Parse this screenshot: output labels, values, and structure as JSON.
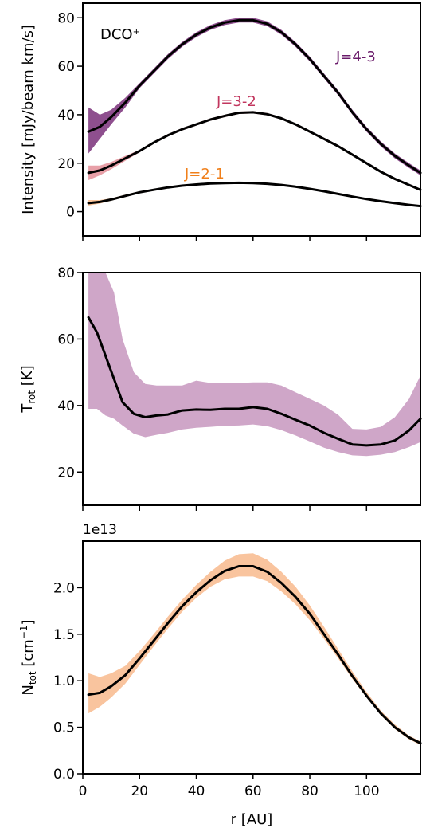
{
  "chart_data": [
    {
      "type": "line",
      "ylabel": "Intensity [mJy/beam km/s]",
      "annotation": "DCO⁺",
      "xlim": [
        0,
        119
      ],
      "ylim": [
        -10,
        86
      ],
      "yticks": [
        0,
        20,
        40,
        60,
        80
      ],
      "xticks": [
        0,
        20,
        40,
        60,
        80,
        100
      ],
      "show_xtick_labels": false,
      "series": [
        {
          "name": "J=4-3",
          "color": "#6a1b6a",
          "band_color": "#8e4f8e",
          "x": [
            2,
            6,
            10,
            15,
            20,
            25,
            30,
            35,
            40,
            45,
            50,
            55,
            60,
            65,
            70,
            75,
            80,
            85,
            90,
            95,
            100,
            105,
            110,
            115,
            119
          ],
          "y": [
            33,
            35,
            39,
            45,
            52,
            58,
            64,
            69,
            73,
            76,
            78,
            79,
            79,
            77.5,
            74,
            69,
            63,
            56,
            49,
            41,
            34,
            28,
            23,
            19,
            16
          ],
          "low": [
            24,
            30,
            36,
            43,
            51,
            57,
            63,
            68,
            72,
            75,
            77,
            78,
            78,
            76.5,
            73,
            68,
            62,
            55,
            48,
            40,
            33,
            27,
            22,
            18,
            15
          ],
          "high": [
            43,
            40,
            42,
            47,
            53,
            59,
            65,
            70,
            74,
            77,
            79,
            80,
            80,
            78.5,
            75,
            70,
            64,
            57,
            50,
            42,
            35,
            29,
            24,
            20,
            17
          ]
        },
        {
          "name": "J=3-2",
          "color": "#c2365e",
          "band_color": "#e8a0a8",
          "x": [
            2,
            6,
            10,
            15,
            20,
            25,
            30,
            35,
            40,
            45,
            50,
            55,
            60,
            65,
            70,
            75,
            80,
            85,
            90,
            95,
            100,
            105,
            110,
            115,
            119
          ],
          "y": [
            16,
            17,
            19,
            22,
            25,
            28.5,
            31.5,
            34,
            36,
            38,
            39.5,
            40.8,
            41,
            40.2,
            38.5,
            36,
            33,
            30,
            27,
            23.5,
            20,
            16.5,
            13.5,
            11,
            9
          ],
          "low": [
            13,
            15,
            17.5,
            21,
            24.5,
            28,
            31,
            33.5,
            35.5,
            37.5,
            39,
            40.3,
            40.5,
            39.7,
            38,
            35.5,
            32.5,
            29.5,
            26.5,
            23,
            19.5,
            16,
            13,
            10.5,
            8.5
          ],
          "high": [
            19,
            19,
            20.5,
            23,
            25.5,
            29,
            32,
            34.5,
            36.5,
            38.5,
            40,
            41.3,
            41.5,
            40.7,
            39,
            36.5,
            33.5,
            30.5,
            27.5,
            24,
            20.5,
            17,
            14,
            11.5,
            9.5
          ]
        },
        {
          "name": "J=2-1",
          "color": "#f07f1a",
          "band_color": "#f9c49a",
          "x": [
            2,
            6,
            10,
            15,
            20,
            25,
            30,
            35,
            40,
            45,
            50,
            55,
            60,
            65,
            70,
            75,
            80,
            85,
            90,
            95,
            100,
            105,
            110,
            115,
            119
          ],
          "y": [
            3.5,
            4,
            5,
            6.5,
            8,
            9,
            10,
            10.7,
            11.2,
            11.6,
            11.8,
            11.9,
            11.8,
            11.5,
            11,
            10.3,
            9.4,
            8.4,
            7.3,
            6.2,
            5.2,
            4.3,
            3.5,
            2.8,
            2.3
          ],
          "low": [
            2.5,
            3.3,
            4.5,
            6,
            7.6,
            8.6,
            9.6,
            10.3,
            10.8,
            11.2,
            11.4,
            11.5,
            11.4,
            11.1,
            10.6,
            9.9,
            9,
            8,
            6.9,
            5.8,
            4.8,
            3.9,
            3.1,
            2.4,
            1.9
          ],
          "high": [
            4.8,
            4.8,
            5.5,
            7,
            8.4,
            9.4,
            10.4,
            11.1,
            11.6,
            12,
            12.2,
            12.3,
            12.2,
            11.9,
            11.4,
            10.7,
            9.8,
            8.8,
            7.7,
            6.6,
            5.6,
            4.7,
            3.9,
            3.2,
            2.7
          ]
        }
      ]
    },
    {
      "type": "line",
      "ylabel": "T",
      "ylabel_sub": "rot",
      "ylabel_tail": " [K]",
      "xlim": [
        0,
        119
      ],
      "ylim": [
        10,
        80
      ],
      "yticks": [
        20,
        40,
        60,
        80
      ],
      "xticks": [
        0,
        20,
        40,
        60,
        80,
        100
      ],
      "show_xtick_labels": false,
      "series": [
        {
          "color": "#000000",
          "band_color": "#cfa6c8",
          "x": [
            2,
            5,
            8,
            11,
            14,
            18,
            22,
            26,
            30,
            35,
            40,
            45,
            50,
            55,
            60,
            65,
            70,
            75,
            80,
            85,
            90,
            95,
            100,
            105,
            110,
            115,
            119
          ],
          "y": [
            66.5,
            62,
            55,
            48,
            41,
            37.5,
            36.5,
            37,
            37.3,
            38.5,
            38.8,
            38.7,
            39,
            39,
            39.5,
            39,
            37.5,
            35.7,
            34,
            31.8,
            30,
            28.3,
            28,
            28.3,
            29.5,
            32.5,
            36
          ],
          "low": [
            39,
            39,
            37,
            36,
            34,
            31.5,
            30.5,
            31.2,
            31.8,
            32.8,
            33.3,
            33.6,
            33.9,
            34,
            34.3,
            33.8,
            32.6,
            31,
            29.2,
            27.3,
            26,
            25,
            24.8,
            25.2,
            26,
            27.5,
            29
          ],
          "high": [
            80,
            80,
            80,
            74,
            60,
            50,
            46.5,
            46,
            46,
            46,
            47.5,
            46.8,
            46.8,
            46.8,
            47,
            47,
            46,
            44,
            42,
            40,
            37.2,
            33,
            32.8,
            33.6,
            36.5,
            42,
            49
          ]
        }
      ]
    },
    {
      "type": "line",
      "ylabel": "N",
      "ylabel_sub": "tot",
      "ylabel_mid": " [cm",
      "ylabel_sup": "−1",
      "ylabel_tail": "]",
      "offset_text": "1e13",
      "xlabel": "r [AU]",
      "xlim": [
        0,
        119
      ],
      "ylim": [
        0,
        2.5
      ],
      "yticks": [
        "0.0",
        "0.5",
        "1.0",
        "1.5",
        "2.0"
      ],
      "xticks": [
        "0",
        "20",
        "40",
        "60",
        "80",
        "100"
      ],
      "show_xtick_labels": true,
      "series": [
        {
          "color": "#000000",
          "band_color": "#f9c49e",
          "x": [
            2,
            6,
            10,
            15,
            20,
            25,
            30,
            35,
            40,
            45,
            50,
            55,
            60,
            65,
            70,
            75,
            80,
            85,
            90,
            95,
            100,
            105,
            110,
            115,
            119
          ],
          "y": [
            0.85,
            0.87,
            0.94,
            1.06,
            1.24,
            1.43,
            1.62,
            1.8,
            1.95,
            2.08,
            2.18,
            2.23,
            2.23,
            2.17,
            2.05,
            1.9,
            1.72,
            1.5,
            1.28,
            1.05,
            0.84,
            0.65,
            0.5,
            0.39,
            0.33
          ],
          "low": [
            0.65,
            0.72,
            0.82,
            0.97,
            1.17,
            1.37,
            1.56,
            1.74,
            1.89,
            2.01,
            2.09,
            2.12,
            2.12,
            2.07,
            1.96,
            1.82,
            1.65,
            1.45,
            1.24,
            1.02,
            0.82,
            0.63,
            0.48,
            0.37,
            0.31
          ],
          "high": [
            1.08,
            1.04,
            1.08,
            1.16,
            1.32,
            1.5,
            1.69,
            1.87,
            2.03,
            2.17,
            2.29,
            2.36,
            2.37,
            2.3,
            2.17,
            2.01,
            1.81,
            1.58,
            1.34,
            1.1,
            0.88,
            0.68,
            0.53,
            0.41,
            0.35
          ]
        }
      ]
    }
  ]
}
